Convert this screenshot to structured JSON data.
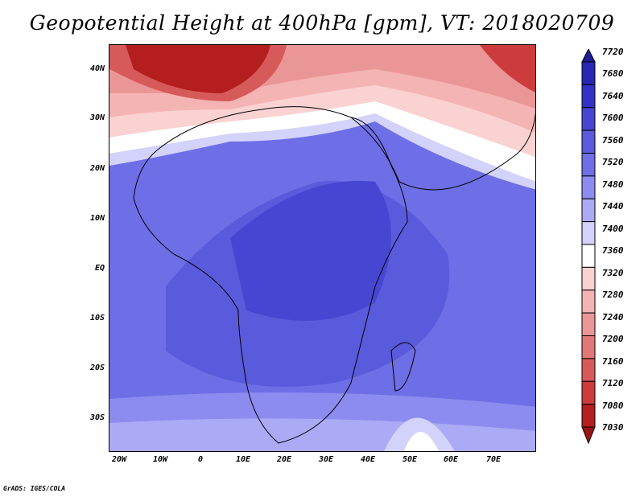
{
  "title": "Geopotential Height at 400hPa [gpm], VT: 2018020709",
  "footer": "GrADS: IGES/COLA",
  "map": {
    "lat_ticks": [
      "40N",
      "30N",
      "20N",
      "10N",
      "EQ",
      "10S",
      "20S",
      "30S"
    ],
    "lon_ticks": [
      "20W",
      "10W",
      "0",
      "10E",
      "20E",
      "30E",
      "40E",
      "50E",
      "60E",
      "70E"
    ]
  },
  "colorbar": {
    "levels": [
      "7720",
      "7680",
      "7640",
      "7600",
      "7560",
      "7520",
      "7480",
      "7440",
      "7400",
      "7360",
      "7320",
      "7280",
      "7240",
      "7200",
      "7160",
      "7120",
      "7080",
      "7030"
    ],
    "colors": [
      "#1e1e96",
      "#2828b4",
      "#3232c8",
      "#4646d2",
      "#5a5adc",
      "#6e6ee6",
      "#8c8cf0",
      "#aaaaf5",
      "#d2d2fa",
      "#ffffff",
      "#fad2d2",
      "#f5b4b4",
      "#eb9696",
      "#e17878",
      "#d75a5a",
      "#cd3c3c",
      "#b41e1e",
      "#9b1414"
    ]
  }
}
